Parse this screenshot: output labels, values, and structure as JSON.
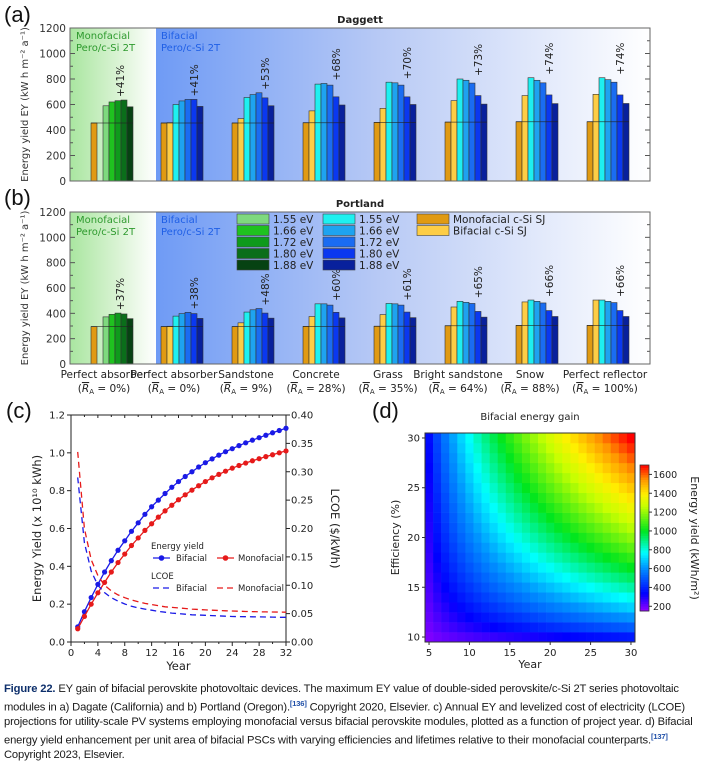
{
  "figure_caption": {
    "label": "Figure 22.",
    "text_1": " EY gain of bifacial perovskite photovoltaic devices. The maximum EY value of double-sided perovskite/c-Si 2T series photovoltaic modules in a) Dagate (California) and b) Portland (Oregon).",
    "ref_1": "[136]",
    "text_2": " Copyright 2020, Elsevier. c) Annual EY and levelized cost of electricity (LCOE) projections for utility-scale PV systems employing monofacial versus bifacial perovskite modules, plotted as a function of project year. d) Bifacial energy yield enhancement per unit area of bifacial PSCs with varying efficiencies and lifetimes relative to their monofacial counterparts.",
    "ref_2": "[137]",
    "text_3": " Copyright 2023, Elsevier."
  },
  "panel_labels": {
    "a": "(a)",
    "b": "(b)",
    "c": "(c)",
    "d": "(d)"
  },
  "bar_panels_common": {
    "ylabel": "Energy yield EY (kW h m⁻² a⁻¹)",
    "ylim": [
      0,
      1200
    ],
    "yticks": [
      "0",
      "200",
      "400",
      "600",
      "800",
      "1000",
      "1200"
    ],
    "region_labels": {
      "mono_line1": "Monofacial",
      "mono_line2": "Pero/c-Si 2T",
      "bi_line1": "Bifacial",
      "bi_line2": "Pero/c-Si 2T"
    },
    "categories": [
      {
        "name": "Perfect absorber",
        "ra": "0%"
      },
      {
        "name": "Perfect absorber",
        "ra": "0%"
      },
      {
        "name": "Sandstone",
        "ra": "9%"
      },
      {
        "name": "Concrete",
        "ra": "28%"
      },
      {
        "name": "Grass",
        "ra": "35%"
      },
      {
        "name": "Bright sandstone",
        "ra": "64%"
      },
      {
        "name": "Snow",
        "ra": "88%"
      },
      {
        "name": "Perfect reflector",
        "ra": "100%"
      }
    ],
    "ra_prefix": "(R̅",
    "ra_sub": "A",
    "legend": {
      "mono_tandem": [
        {
          "label": "1.55 eV",
          "color": "#7ed97e"
        },
        {
          "label": "1.66 eV",
          "color": "#1fc21f"
        },
        {
          "label": "1.72 eV",
          "color": "#0f9a1c"
        },
        {
          "label": "1.80 eV",
          "color": "#0a6e1a"
        },
        {
          "label": "1.88 eV",
          "color": "#064212"
        }
      ],
      "bi_tandem": [
        {
          "label": "1.55 eV",
          "color": "#1ef0f0"
        },
        {
          "label": "1.66 eV",
          "color": "#1ea3f0"
        },
        {
          "label": "1.72 eV",
          "color": "#1a6cf2"
        },
        {
          "label": "1.80 eV",
          "color": "#0a38f0"
        },
        {
          "label": "1.88 eV",
          "color": "#08209c"
        }
      ],
      "single_junction": [
        {
          "label": "Monofacial c-Si SJ",
          "color": "#e09a12"
        },
        {
          "label": "Bifacial c-Si SJ",
          "color": "#fdcd45"
        }
      ]
    }
  },
  "chart_data": [
    {
      "type": "bar",
      "panel": "a",
      "title": "Daggett",
      "xlabel": "",
      "ylabel": "Energy yield EY (kW h m-2 a-1)",
      "ylim": [
        0,
        1200
      ],
      "categories": [
        "Perfect absorber (mono)",
        "Perfect absorber",
        "Sandstone",
        "Concrete",
        "Grass",
        "Bright sandstone",
        "Snow",
        "Perfect reflector"
      ],
      "reference_line": 455,
      "gain_labels": [
        "+41%",
        "+41%",
        "+53%",
        "+68%",
        "+70%",
        "+73%",
        "+74%",
        "+74%"
      ],
      "series": [
        {
          "name": "Monofacial c-Si SJ",
          "values": [
            455,
            455,
            455,
            457,
            460,
            462,
            465,
            465
          ]
        },
        {
          "name": "Bifacial c-Si SJ",
          "values": [
            null,
            458,
            490,
            550,
            570,
            630,
            670,
            680
          ]
        },
        {
          "name": "Pero/c-Si 2T 1.55 eV",
          "values": [
            590,
            600,
            655,
            760,
            775,
            800,
            810,
            810
          ]
        },
        {
          "name": "Pero/c-Si 2T 1.66 eV",
          "values": [
            620,
            628,
            678,
            765,
            770,
            790,
            790,
            795
          ]
        },
        {
          "name": "Pero/c-Si 2T 1.72 eV",
          "values": [
            630,
            640,
            692,
            752,
            752,
            768,
            770,
            775
          ]
        },
        {
          "name": "Pero/c-Si 2T 1.80 eV",
          "values": [
            635,
            640,
            652,
            660,
            660,
            670,
            675,
            675
          ]
        },
        {
          "name": "Pero/c-Si 2T 1.88 eV",
          "values": [
            582,
            585,
            590,
            596,
            600,
            603,
            607,
            608
          ]
        }
      ]
    },
    {
      "type": "bar",
      "panel": "b",
      "title": "Portland",
      "xlabel": "",
      "ylabel": "Energy yield EY (kW h m-2 a-1)",
      "ylim": [
        0,
        1200
      ],
      "categories": [
        "Perfect absorber (mono)",
        "Perfect absorber",
        "Sandstone",
        "Concrete",
        "Grass",
        "Bright sandstone",
        "Snow",
        "Perfect reflector"
      ],
      "reference_line": 295,
      "gain_labels": [
        "+37%",
        "+38%",
        "+48%",
        "+60%",
        "+61%",
        "+65%",
        "+66%",
        "+66%"
      ],
      "series": [
        {
          "name": "Monofacial c-Si SJ",
          "values": [
            295,
            295,
            295,
            297,
            298,
            302,
            305,
            305
          ]
        },
        {
          "name": "Bifacial c-Si SJ",
          "values": [
            null,
            298,
            325,
            375,
            390,
            450,
            490,
            505
          ]
        },
        {
          "name": "Pero/c-Si 2T 1.55 eV",
          "values": [
            372,
            378,
            410,
            475,
            478,
            495,
            505,
            505
          ]
        },
        {
          "name": "Pero/c-Si 2T 1.66 eV",
          "values": [
            392,
            398,
            428,
            475,
            475,
            487,
            495,
            495
          ]
        },
        {
          "name": "Pero/c-Si 2T 1.72 eV",
          "values": [
            402,
            408,
            438,
            465,
            465,
            478,
            482,
            485
          ]
        },
        {
          "name": "Pero/c-Si 2T 1.80 eV",
          "values": [
            395,
            398,
            402,
            408,
            410,
            415,
            422,
            422
          ]
        },
        {
          "name": "Pero/c-Si 2T 1.88 eV",
          "values": [
            358,
            360,
            362,
            364,
            366,
            370,
            375,
            375
          ]
        }
      ]
    },
    {
      "type": "line",
      "panel": "c",
      "title": "",
      "xlabel": "Year",
      "ylabel": "Energy Yield (x 10¹⁰ kWh)",
      "ylabel_right": "LCOE ($/kWh)",
      "xlim": [
        0,
        32
      ],
      "ylim": [
        0,
        1.2
      ],
      "ylim_right": [
        0,
        0.4
      ],
      "xticks": [
        "0",
        "4",
        "8",
        "12",
        "16",
        "20",
        "24",
        "28",
        "32"
      ],
      "yticks": [
        "0.0",
        "0.2",
        "0.4",
        "0.6",
        "0.8",
        "1.0",
        "1.2"
      ],
      "yticks_right": [
        "0.00",
        "0.05",
        "0.10",
        "0.15",
        "0.20",
        "0.25",
        "0.30",
        "0.35",
        "0.40"
      ],
      "legend": {
        "group1_title": "Energy yield",
        "group2_title": "LCOE",
        "bifacial": "Bifacial",
        "monofacial": "Monofacial"
      },
      "x": [
        1,
        2,
        3,
        4,
        5,
        6,
        7,
        8,
        9,
        10,
        11,
        12,
        13,
        14,
        15,
        16,
        17,
        18,
        19,
        20,
        21,
        22,
        23,
        24,
        25,
        26,
        27,
        28,
        29,
        30,
        31,
        32
      ],
      "series": [
        {
          "name": "Energy yield Bifacial",
          "axis": "left",
          "style": "solid-marker",
          "color": "#1a1ae6",
          "values": [
            0.08,
            0.16,
            0.235,
            0.305,
            0.37,
            0.43,
            0.485,
            0.535,
            0.585,
            0.63,
            0.675,
            0.715,
            0.75,
            0.785,
            0.818,
            0.848,
            0.875,
            0.9,
            0.925,
            0.948,
            0.968,
            0.988,
            1.006,
            1.022,
            1.038,
            1.053,
            1.067,
            1.08,
            1.093,
            1.106,
            1.118,
            1.13
          ]
        },
        {
          "name": "Energy yield Monofacial",
          "axis": "left",
          "style": "solid-marker",
          "color": "#e61a1a",
          "values": [
            0.07,
            0.135,
            0.2,
            0.26,
            0.315,
            0.37,
            0.42,
            0.465,
            0.51,
            0.55,
            0.59,
            0.625,
            0.66,
            0.693,
            0.723,
            0.752,
            0.778,
            0.803,
            0.826,
            0.848,
            0.868,
            0.886,
            0.903,
            0.919,
            0.933,
            0.946,
            0.958,
            0.969,
            0.98,
            0.99,
            1.0,
            1.01
          ]
        },
        {
          "name": "LCOE Bifacial",
          "axis": "right",
          "style": "dashed",
          "color": "#1a1ae6",
          "values": [
            0.29,
            0.175,
            0.125,
            0.1,
            0.087,
            0.078,
            0.072,
            0.067,
            0.063,
            0.06,
            0.058,
            0.056,
            0.054,
            0.0525,
            0.051,
            0.05,
            0.049,
            0.048,
            0.0475,
            0.047,
            0.0465,
            0.046,
            0.0455,
            0.045,
            0.0448,
            0.0446,
            0.0444,
            0.0442,
            0.044,
            0.0438,
            0.0436,
            0.0435
          ]
        },
        {
          "name": "LCOE Monofacial",
          "axis": "right",
          "style": "dashed",
          "color": "#e61a1a",
          "values": [
            0.335,
            0.2,
            0.145,
            0.117,
            0.1,
            0.09,
            0.083,
            0.078,
            0.074,
            0.071,
            0.068,
            0.066,
            0.064,
            0.062,
            0.061,
            0.06,
            0.059,
            0.058,
            0.0572,
            0.0565,
            0.056,
            0.0555,
            0.055,
            0.0546,
            0.0542,
            0.0538,
            0.0535,
            0.0532,
            0.053,
            0.0528,
            0.0526,
            0.0525
          ]
        }
      ]
    },
    {
      "type": "heatmap",
      "panel": "d",
      "title": "Bifacial energy gain",
      "xlabel": "Year",
      "ylabel": "Efficiency (%)",
      "colorbar_label": "Energy yield (kWh/m²)",
      "xlim": [
        5,
        30
      ],
      "ylim": [
        10,
        30
      ],
      "xticks": [
        "5",
        "10",
        "15",
        "20",
        "25",
        "30"
      ],
      "yticks": [
        "10",
        "15",
        "20",
        "25",
        "30"
      ],
      "colorbar_range": [
        150,
        1700
      ],
      "colorbar_ticks": [
        "200",
        "400",
        "600",
        "800",
        "1000",
        "1200",
        "1400",
        "1600"
      ],
      "model": "value ≈ year × efficiency scaling; min ≈ 180 at (5,10), max ≈ 1700 at (30,30)"
    }
  ]
}
